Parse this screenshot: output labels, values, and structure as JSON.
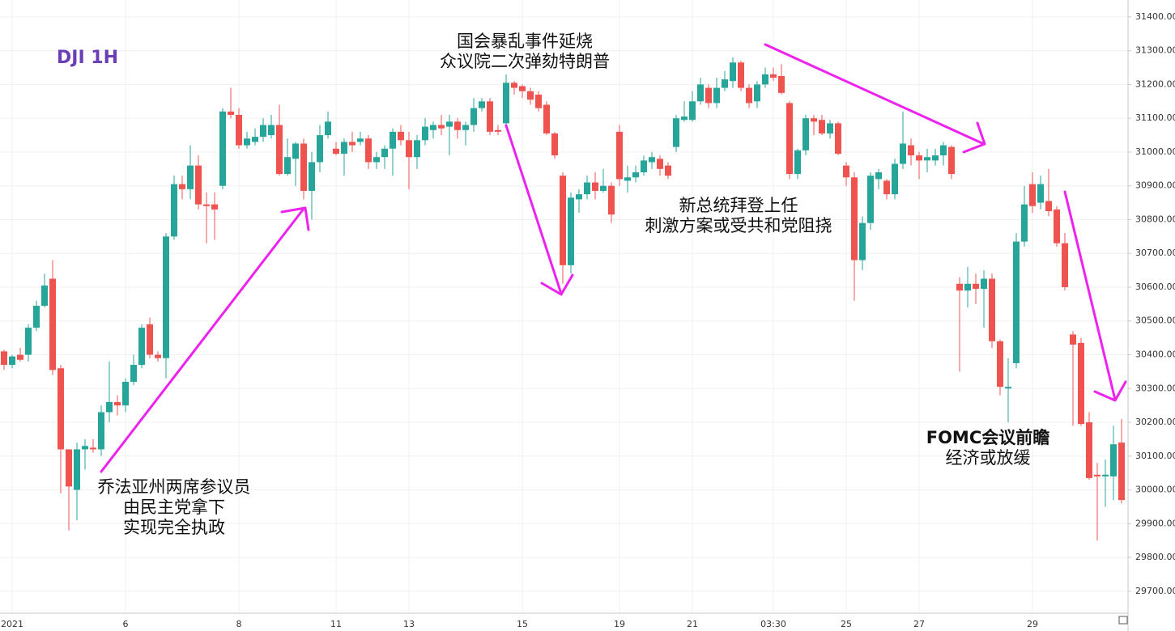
{
  "chart_data": {
    "type": "candlestick",
    "title": "DJI 1H",
    "title_color": "#6a3fb5",
    "up_color": "#26a69a",
    "down_color": "#ef5350",
    "grid": true,
    "categories": [
      null,
      "2021",
      null,
      null,
      null,
      null,
      null,
      null,
      null,
      null,
      null,
      null,
      null,
      null,
      null,
      "6",
      null,
      null,
      null,
      null,
      null,
      null,
      null,
      null,
      null,
      null,
      null,
      null,
      null,
      "8",
      null,
      null,
      null,
      null,
      null,
      null,
      null,
      null,
      null,
      null,
      null,
      "11",
      null,
      null,
      null,
      null,
      null,
      null,
      null,
      null,
      "13",
      null,
      null,
      null,
      null,
      null,
      null,
      null,
      null,
      null,
      null,
      null,
      null,
      null,
      "15",
      null,
      null,
      null,
      null,
      null,
      null,
      null,
      null,
      null,
      null,
      null,
      "19",
      null,
      null,
      null,
      null,
      null,
      null,
      null,
      null,
      "21",
      null,
      null,
      null,
      null,
      null,
      null,
      null,
      null,
      null,
      "03:30",
      null,
      null,
      null,
      null,
      null,
      null,
      null,
      null,
      "25",
      null,
      null,
      null,
      null,
      null,
      null,
      null,
      null,
      "27",
      null,
      null,
      null,
      null,
      null,
      null,
      null,
      null,
      null,
      null,
      null,
      null,
      null,
      "29",
      null,
      null,
      null,
      null,
      null,
      null,
      null,
      null,
      null,
      null,
      null
    ],
    "open": [
      30410,
      30370,
      30400,
      30400,
      30480,
      30545,
      30625,
      30360,
      30120,
      30000,
      30120,
      30125,
      30120,
      30230,
      30260,
      30250,
      30320,
      30370,
      30490,
      30400,
      30390,
      30750,
      30905,
      30890,
      30960,
      30845,
      30845,
      30900,
      31120,
      31110,
      31020,
      31030,
      31045,
      31050,
      31080,
      30935,
      30980,
      31025,
      30885,
      30970,
      31050,
      31010,
      30995,
      31030,
      31030,
      31040,
      30970,
      30985,
      31010,
      31060,
      31035,
      30985,
      31035,
      31065,
      31080,
      31075,
      31090,
      31065,
      31080,
      31130,
      31150,
      31065,
      31085,
      31205,
      31195,
      31180,
      31170,
      31140,
      31055,
      30930,
      30665,
      30860,
      30875,
      30910,
      30885,
      30900,
      31060,
      30915,
      30925,
      30940,
      30970,
      30980,
      30960,
      31015,
      31095,
      31095,
      31150,
      31190,
      31145,
      31190,
      31210,
      31265,
      31190,
      31150,
      31200,
      31230,
      31225,
      31145,
      30935,
      31005,
      31100,
      31095,
      31055,
      31085,
      30960,
      30925,
      30680,
      30790,
      30920,
      30915,
      30875,
      30965,
      31020,
      30990,
      30975,
      30975,
      30990,
      31015,
      30610,
      30590,
      30610,
      30595,
      30625,
      30440,
      30300,
      30375,
      30735,
      30905,
      30850,
      30855,
      30830,
      30730,
      30460,
      30435,
      30200,
      30045,
      30040,
      30040,
      30140
    ],
    "high": [
      30415,
      30400,
      30420,
      30490,
      30560,
      30640,
      30680,
      30370,
      30120,
      30140,
      30150,
      30150,
      30250,
      30380,
      30280,
      30330,
      30400,
      30490,
      30510,
      30410,
      30760,
      30930,
      30930,
      31020,
      30990,
      30880,
      30880,
      31130,
      31190,
      31130,
      31060,
      31070,
      31100,
      31110,
      31140,
      31040,
      31030,
      31040,
      31000,
      31080,
      31120,
      31030,
      31040,
      31060,
      31060,
      31050,
      31000,
      31020,
      31070,
      31080,
      31060,
      31050,
      31100,
      31090,
      31110,
      31110,
      31100,
      31090,
      31160,
      31160,
      31160,
      31080,
      31230,
      31210,
      31200,
      31190,
      31180,
      31150,
      31060,
      30940,
      30880,
      30890,
      30930,
      30940,
      30950,
      30910,
      31080,
      30960,
      30960,
      30990,
      31000,
      30990,
      30970,
      31110,
      31150,
      31180,
      31220,
      31200,
      31220,
      31240,
      31280,
      31270,
      31200,
      31210,
      31250,
      31250,
      31260,
      31150,
      31010,
      31110,
      31110,
      31110,
      31095,
      31090,
      30970,
      30940,
      30810,
      30940,
      30950,
      30920,
      30980,
      31120,
      31040,
      31000,
      31010,
      31010,
      31030,
      31020,
      30630,
      30660,
      30640,
      30650,
      30640,
      30445,
      30390,
      30760,
      30900,
      30940,
      30930,
      30950,
      30840,
      30760,
      30470,
      30450,
      30230,
      30080,
      30090,
      30190,
      30210
    ],
    "low": [
      30355,
      30360,
      30380,
      30380,
      30470,
      30540,
      30340,
      29990,
      29880,
      29910,
      30060,
      30110,
      30100,
      30200,
      30220,
      30230,
      30310,
      30360,
      30390,
      30380,
      30330,
      30740,
      30860,
      30860,
      30830,
      30730,
      30740,
      30890,
      31100,
      31010,
      31010,
      31020,
      31030,
      31040,
      30930,
      30930,
      30900,
      30860,
      30800,
      30940,
      31040,
      30990,
      30930,
      31000,
      31020,
      30950,
      30950,
      30950,
      30930,
      31020,
      30890,
      30950,
      31020,
      31040,
      31050,
      30990,
      31040,
      31020,
      31060,
      31120,
      31050,
      31050,
      31080,
      31170,
      31160,
      31140,
      31120,
      31050,
      30980,
      30610,
      30640,
      30820,
      30860,
      30860,
      30880,
      30790,
      30900,
      30880,
      30910,
      30930,
      30950,
      30930,
      30920,
      31000,
      31090,
      31090,
      31140,
      31130,
      31130,
      31180,
      31190,
      31180,
      31130,
      31130,
      31190,
      31210,
      31170,
      30920,
      30920,
      30990,
      31050,
      31050,
      31040,
      30990,
      30900,
      30560,
      30650,
      30770,
      30890,
      30860,
      30860,
      30950,
      30960,
      30920,
      30940,
      30960,
      30960,
      30920,
      30350,
      30540,
      30550,
      30480,
      30420,
      30280,
      30200,
      30360,
      30720,
      30820,
      30830,
      30810,
      30720,
      30590,
      30190,
      30190,
      30030,
      29850,
      29950,
      29970,
      29960
    ],
    "close": [
      30370,
      30395,
      30385,
      30480,
      30545,
      30605,
      30355,
      30120,
      30010,
      30120,
      30130,
      30120,
      30230,
      30260,
      30250,
      30320,
      30370,
      30480,
      30400,
      30390,
      30750,
      30905,
      30890,
      30960,
      30845,
      30840,
      30830,
      31120,
      31110,
      31020,
      31040,
      31045,
      31080,
      31080,
      30935,
      30985,
      31025,
      30885,
      30970,
      31050,
      31090,
      30995,
      31030,
      31020,
      31040,
      30970,
      30985,
      31010,
      31060,
      31035,
      30985,
      31035,
      31075,
      31080,
      31070,
      31090,
      31065,
      31080,
      31130,
      31150,
      31060,
      31060,
      31205,
      31190,
      31180,
      31155,
      31130,
      31055,
      30990,
      30665,
      30865,
      30875,
      30910,
      30885,
      30900,
      30815,
      30920,
      30925,
      30940,
      30975,
      30985,
      30950,
      30930,
      31100,
      31105,
      31150,
      31200,
      31145,
      31190,
      31215,
      31265,
      31190,
      31145,
      31200,
      31230,
      31220,
      31175,
      30935,
      31005,
      31100,
      31090,
      31055,
      31085,
      30995,
      30925,
      30680,
      30790,
      30930,
      30940,
      30875,
      30965,
      31025,
      30990,
      30975,
      30985,
      30990,
      31020,
      30935,
      30590,
      30610,
      30595,
      30625,
      30440,
      30305,
      30305,
      30735,
      30845,
      30840,
      30905,
      30825,
      30730,
      30600,
      30430,
      30195,
      30035,
      30040,
      30045,
      30135,
      29970
    ],
    "ylim": [
      29635,
      31450
    ],
    "yticks": [
      {
        "value": 29700,
        "label": "29700.00"
      },
      {
        "value": 29800,
        "label": "29800.00"
      },
      {
        "value": 29900,
        "label": "29900.00"
      },
      {
        "value": 30000,
        "label": "30000.00"
      },
      {
        "value": 30100,
        "label": "30100.00"
      },
      {
        "value": 30200,
        "label": "30200.00"
      },
      {
        "value": 30300,
        "label": "30300.00"
      },
      {
        "value": 30400,
        "label": "30400.00"
      },
      {
        "value": 30500,
        "label": "30500.00"
      },
      {
        "value": 30600,
        "label": "30600.00"
      },
      {
        "value": 30700,
        "label": "30700.00"
      },
      {
        "value": 30800,
        "label": "30800.00"
      },
      {
        "value": 30900,
        "label": "30900.00"
      },
      {
        "value": 31000,
        "label": "31000.00"
      },
      {
        "value": 31100,
        "label": "31100.00"
      },
      {
        "value": 31200,
        "label": "31200.00"
      },
      {
        "value": 31300,
        "label": "31300.00"
      },
      {
        "value": 31400,
        "label": "31400.00"
      }
    ],
    "annotations": [
      [
        "乔法亚州两席参议员",
        "由民主党拿下",
        "实现完全执政"
      ],
      [
        "国会暴乱事件延烧",
        "众议院二次弹劾特朗普"
      ],
      [
        "新总统拜登上任",
        "刺激方案或受共和党阻挠"
      ],
      [
        "FOMC会议前瞻",
        "经济或放缓"
      ]
    ]
  }
}
